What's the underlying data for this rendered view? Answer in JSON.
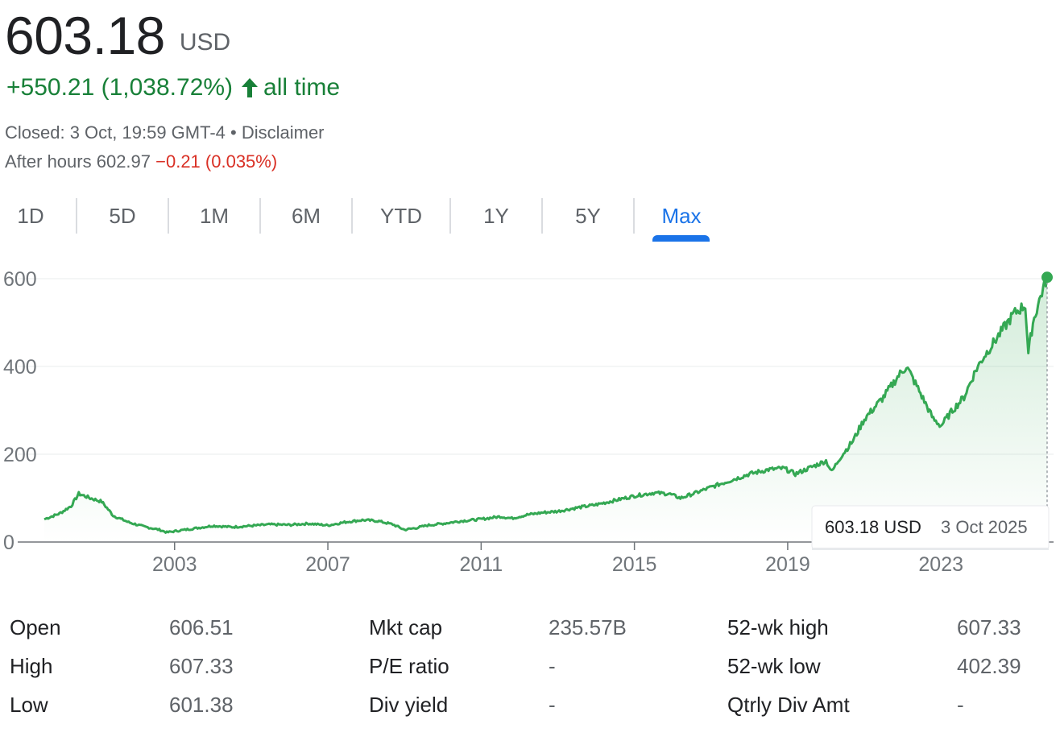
{
  "quote": {
    "price": "603.18",
    "currency": "USD",
    "change_text": "+550.21 (1,038.72%)",
    "change_period": "all time",
    "closed_text": "Closed: 3 Oct, 19:59 GMT-4 • ",
    "disclaimer_label": "Disclaimer",
    "after_hours_label": "After hours 602.97 ",
    "after_hours_change": "−0.21 (0.035%)"
  },
  "tabs": [
    {
      "label": "1D",
      "active": false
    },
    {
      "label": "5D",
      "active": false
    },
    {
      "label": "1M",
      "active": false
    },
    {
      "label": "6M",
      "active": false
    },
    {
      "label": "YTD",
      "active": false
    },
    {
      "label": "1Y",
      "active": false
    },
    {
      "label": "5Y",
      "active": false
    },
    {
      "label": "Max",
      "active": true
    }
  ],
  "colors": {
    "line": "#34a853",
    "positive": "#188038",
    "negative": "#d93025",
    "accent": "#1a73e8",
    "grid": "#f1f3f4",
    "axis_text": "#70757a"
  },
  "chart_data": {
    "type": "area",
    "xlabel": "",
    "ylabel": "",
    "ylim": [
      0,
      620
    ],
    "y_ticks": [
      0,
      200,
      400,
      600
    ],
    "x_tick_labels": [
      "2003",
      "2007",
      "2011",
      "2015",
      "2019",
      "2023"
    ],
    "x_range": [
      1999.6,
      2025.77
    ],
    "series": [
      {
        "x": [
          1999.6,
          2000.0,
          2000.3,
          2000.5,
          2000.8,
          2001.1,
          2001.4,
          2001.8,
          2002.2,
          2002.6,
          2002.8,
          2003.2,
          2003.6,
          2004.0,
          2004.5,
          2005.0,
          2005.5,
          2006.0,
          2006.5,
          2007.0,
          2007.5,
          2007.9,
          2008.3,
          2008.7,
          2009.0,
          2009.3,
          2009.6,
          2010.0,
          2010.5,
          2011.0,
          2011.5,
          2011.8,
          2012.2,
          2012.6,
          2013.0,
          2013.5,
          2014.0,
          2014.5,
          2015.0,
          2015.5,
          2015.9,
          2016.2,
          2016.6,
          2017.0,
          2017.5,
          2018.0,
          2018.5,
          2018.9,
          2019.2,
          2019.6,
          2020.0,
          2020.15,
          2020.35,
          2020.7,
          2021.0,
          2021.5,
          2021.9,
          2022.1,
          2022.4,
          2022.8,
          2023.0,
          2023.3,
          2023.6,
          2023.9,
          2024.1,
          2024.5,
          2024.9,
          2025.2,
          2025.28,
          2025.4,
          2025.6,
          2025.77
        ],
        "y": [
          52,
          65,
          82,
          110,
          100,
          92,
          60,
          45,
          35,
          28,
          22,
          27,
          32,
          37,
          34,
          37,
          40,
          39,
          42,
          38,
          46,
          50,
          48,
          40,
          28,
          32,
          38,
          42,
          48,
          52,
          58,
          54,
          62,
          67,
          70,
          78,
          85,
          95,
          105,
          112,
          110,
          100,
          112,
          125,
          140,
          155,
          165,
          168,
          155,
          170,
          185,
          160,
          190,
          230,
          280,
          330,
          380,
          400,
          350,
          280,
          265,
          300,
          330,
          390,
          420,
          470,
          520,
          540,
          430,
          500,
          560,
          603.18
        ]
      }
    ],
    "tooltip": {
      "value": "603.18 USD",
      "date": "3 Oct 2025"
    }
  },
  "stats": [
    {
      "label": "Open",
      "value": "606.51"
    },
    {
      "label": "High",
      "value": "607.33"
    },
    {
      "label": "Low",
      "value": "601.38"
    },
    {
      "label": "Mkt cap",
      "value": "235.57B"
    },
    {
      "label": "P/E ratio",
      "value": "-"
    },
    {
      "label": "Div yield",
      "value": "-"
    },
    {
      "label": "52-wk high",
      "value": "607.33"
    },
    {
      "label": "52-wk low",
      "value": "402.39"
    },
    {
      "label": "Qtrly Div Amt",
      "value": "-"
    }
  ]
}
